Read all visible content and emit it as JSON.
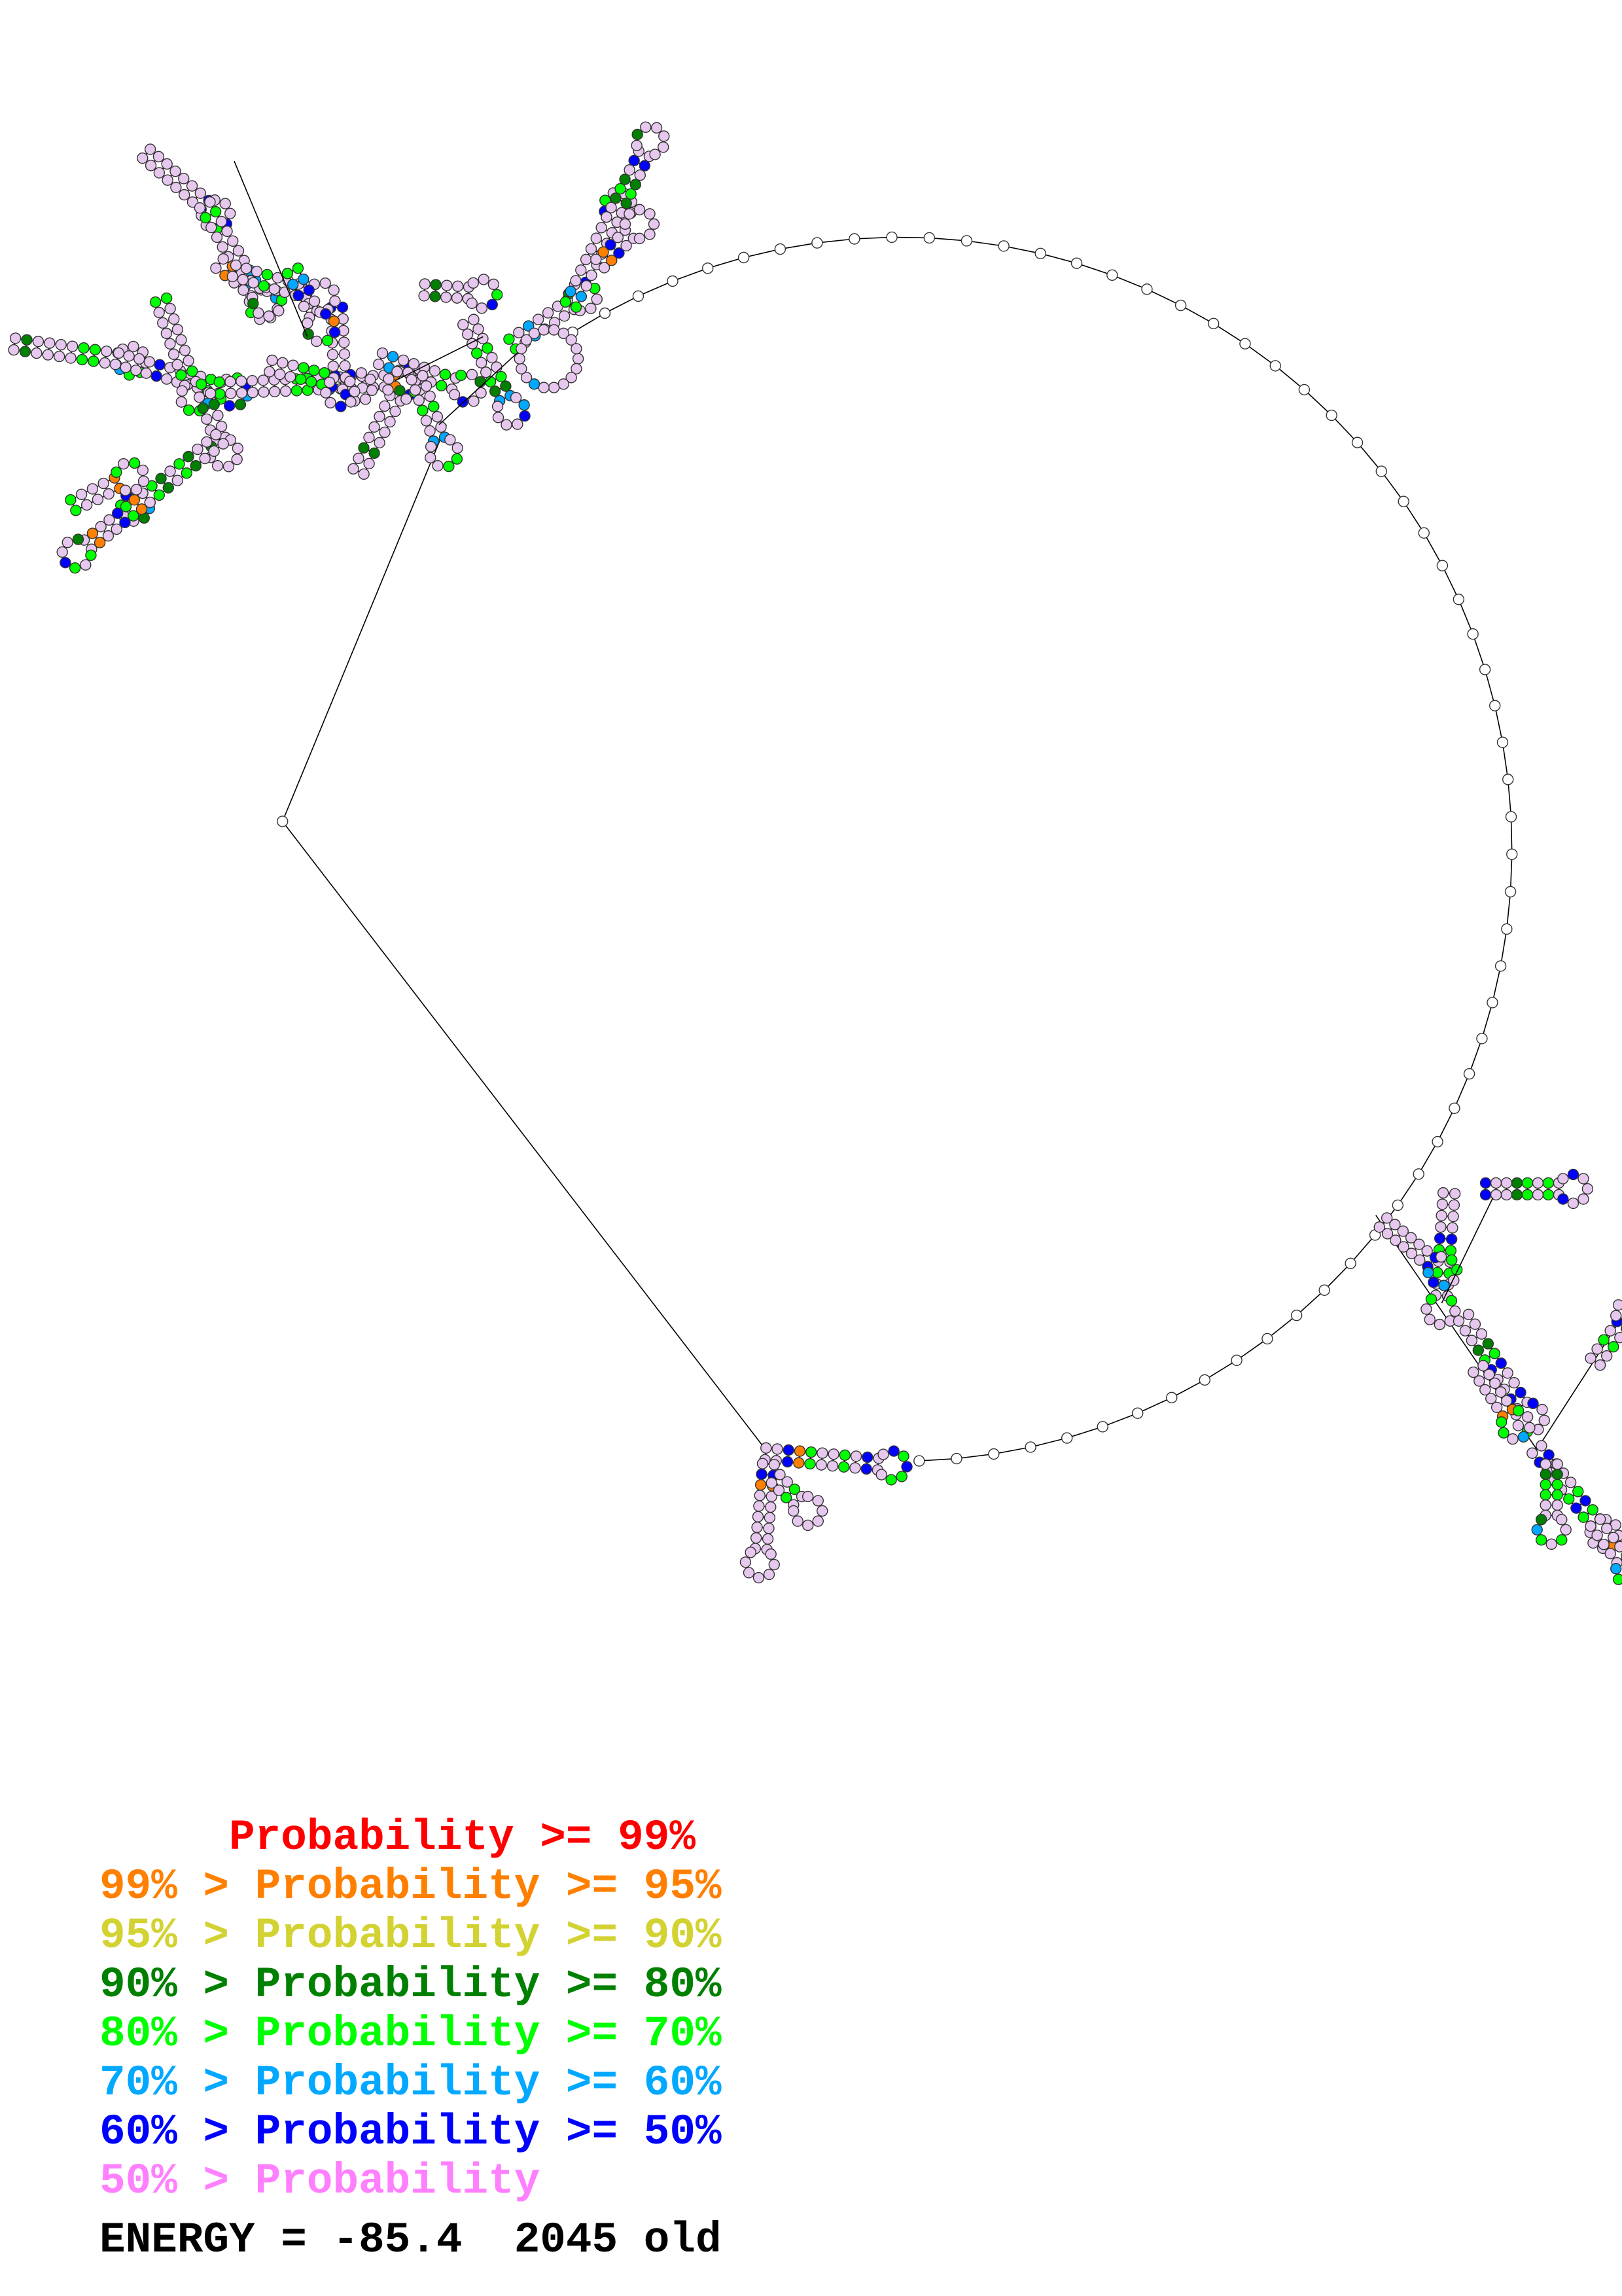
{
  "diagram": {
    "type": "rna-secondary-structure",
    "node_fill_default": "#e6c8ee",
    "line_color": "#000000"
  },
  "legend": {
    "rows": [
      {
        "text": "     Probability >= 99%",
        "color": "#ff0000"
      },
      {
        "text": "99% > Probability >= 95%",
        "color": "#ff8000"
      },
      {
        "text": "95% > Probability >= 90%",
        "color": "#d2d232"
      },
      {
        "text": "90% > Probability >= 80%",
        "color": "#008000"
      },
      {
        "text": "80% > Probability >= 70%",
        "color": "#00ff00"
      },
      {
        "text": "70% > Probability >= 60%",
        "color": "#00a8ff"
      },
      {
        "text": "60% > Probability >= 50%",
        "color": "#0000ff"
      },
      {
        "text": "50% > Probability",
        "color": "#ff80ff"
      }
    ]
  },
  "energy": {
    "text": "ENERGY = -85.4  2045 old"
  }
}
